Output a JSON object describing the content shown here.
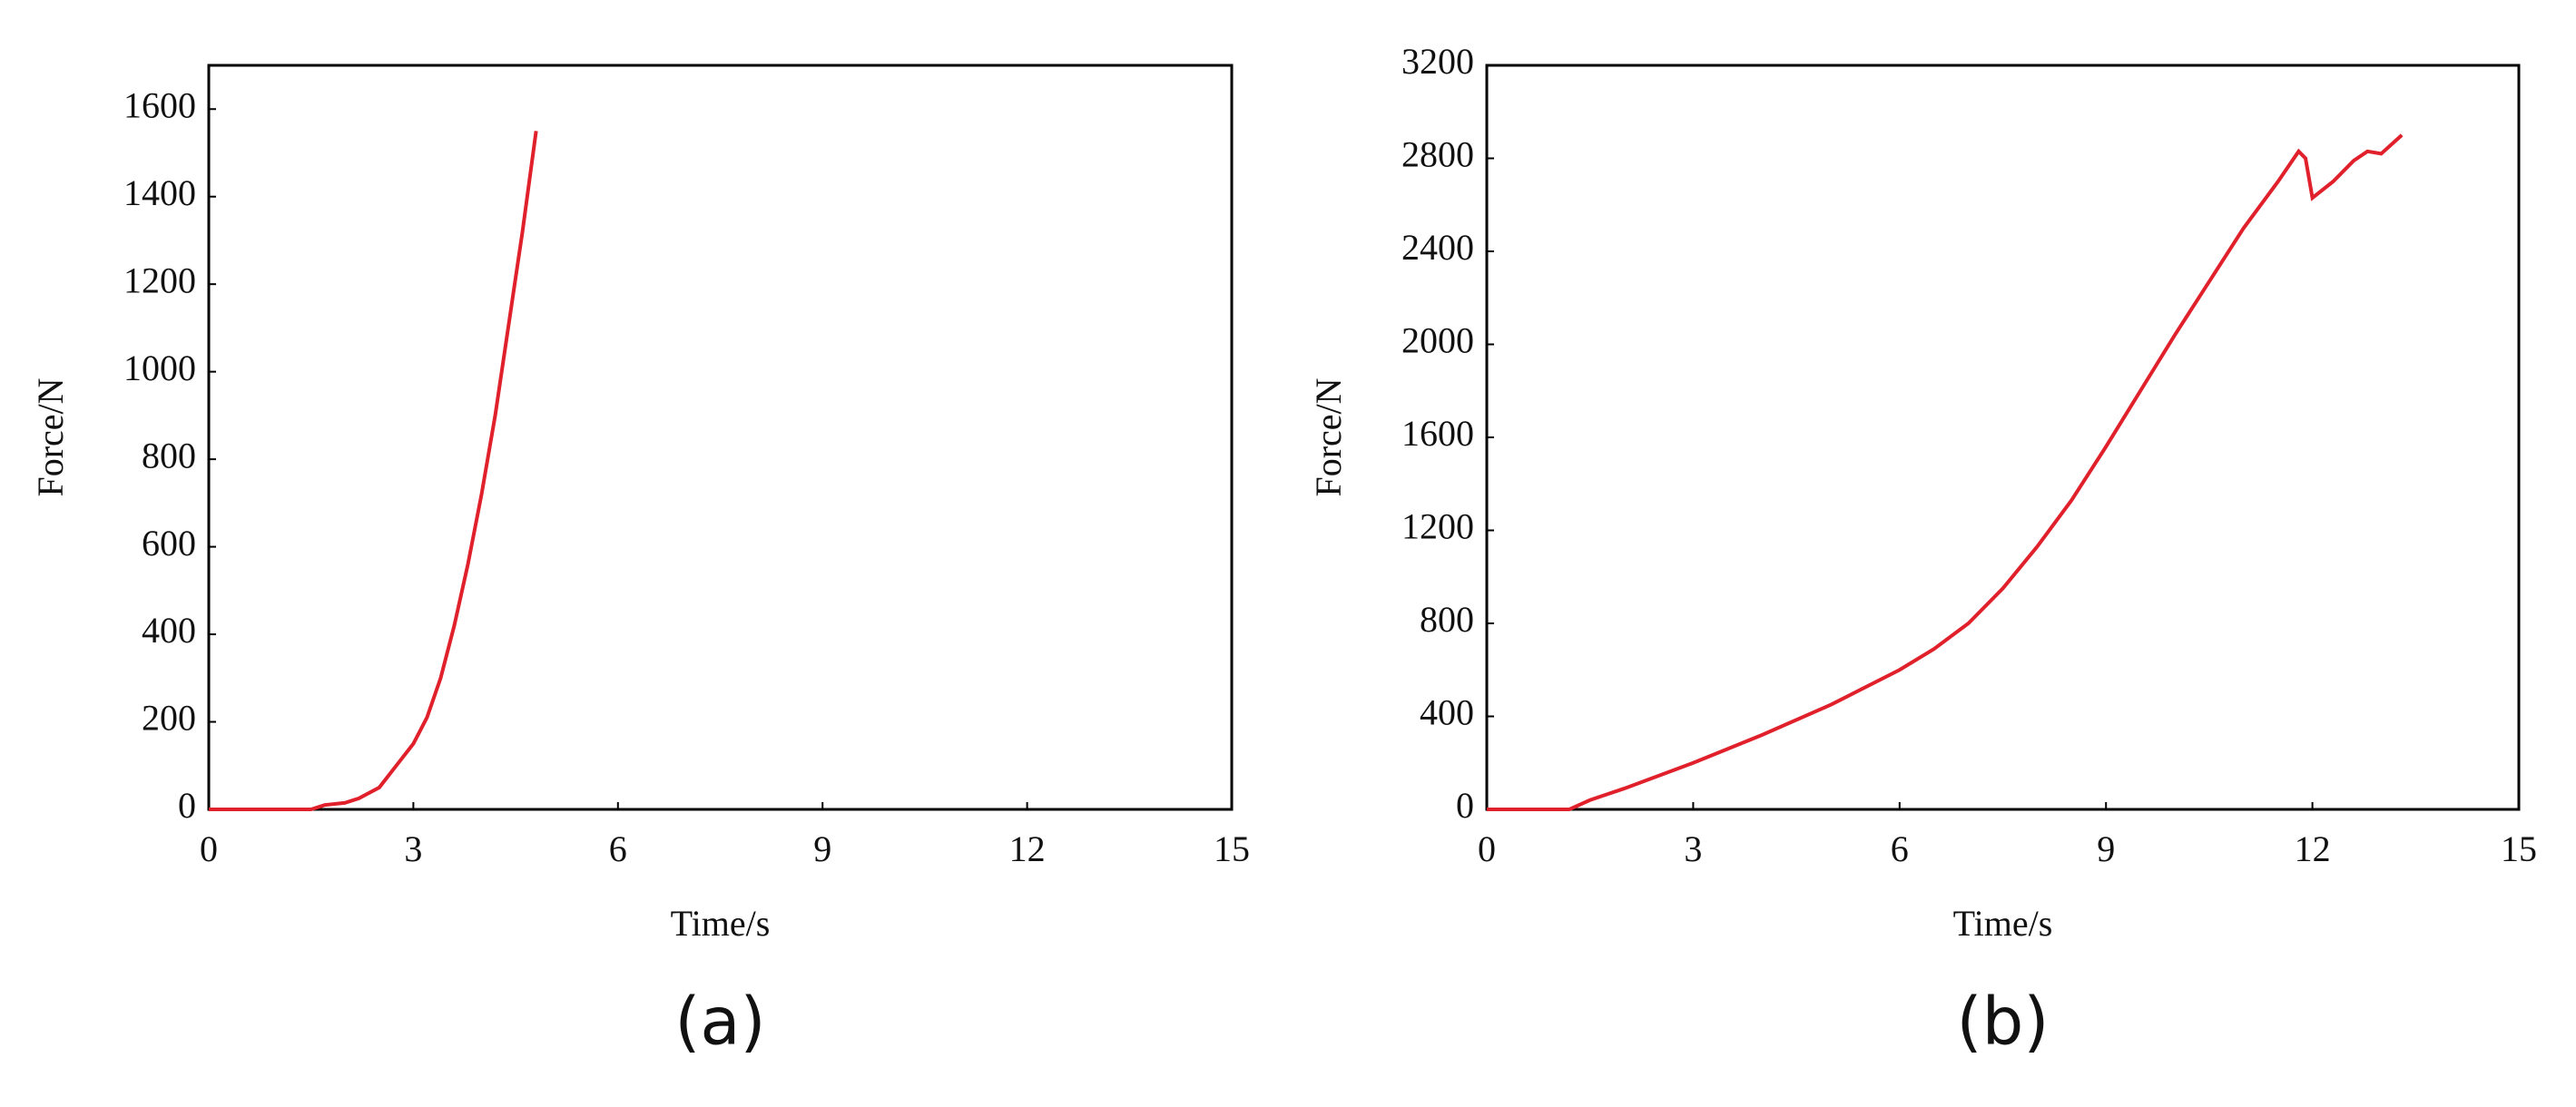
{
  "chart_data": [
    {
      "type": "line",
      "caption": "(a)",
      "xlabel": "Time/s",
      "ylabel": "Force/N",
      "xlim": [
        0,
        15
      ],
      "xticks": [
        0,
        3,
        6,
        9,
        12,
        15
      ],
      "ylim": [
        0,
        1700
      ],
      "yticks": [
        0,
        200,
        400,
        600,
        800,
        1000,
        1200,
        1400,
        1600
      ],
      "series": [
        {
          "color": "#e0202a",
          "x": [
            0,
            0.5,
            1,
            1.5,
            1.7,
            2,
            2.2,
            2.5,
            2.8,
            3,
            3.2,
            3.4,
            3.6,
            3.8,
            4,
            4.2,
            4.4,
            4.6,
            4.8
          ],
          "values": [
            0,
            0,
            0,
            0,
            10,
            15,
            25,
            50,
            110,
            150,
            210,
            300,
            420,
            560,
            720,
            900,
            1110,
            1320,
            1550
          ]
        }
      ]
    },
    {
      "type": "line",
      "caption": "(b)",
      "xlabel": "Time/s",
      "ylabel": "Force/N",
      "xlim": [
        0,
        15
      ],
      "xticks": [
        0,
        3,
        6,
        9,
        12,
        15
      ],
      "ylim": [
        0,
        3200
      ],
      "yticks": [
        0,
        400,
        800,
        1200,
        1600,
        2000,
        2400,
        2800,
        3200
      ],
      "series": [
        {
          "color": "#e0202a",
          "x": [
            0,
            1.2,
            1.5,
            2,
            3,
            4,
            5,
            6,
            6.5,
            7,
            7.5,
            8,
            8.5,
            9,
            9.5,
            10,
            10.5,
            11,
            11.5,
            11.8,
            11.9,
            12,
            12.3,
            12.6,
            12.8,
            13,
            13.3
          ],
          "values": [
            0,
            0,
            40,
            90,
            200,
            320,
            450,
            600,
            690,
            800,
            950,
            1130,
            1330,
            1560,
            1800,
            2040,
            2270,
            2500,
            2700,
            2830,
            2800,
            2630,
            2700,
            2790,
            2830,
            2820,
            2900
          ]
        }
      ]
    }
  ]
}
